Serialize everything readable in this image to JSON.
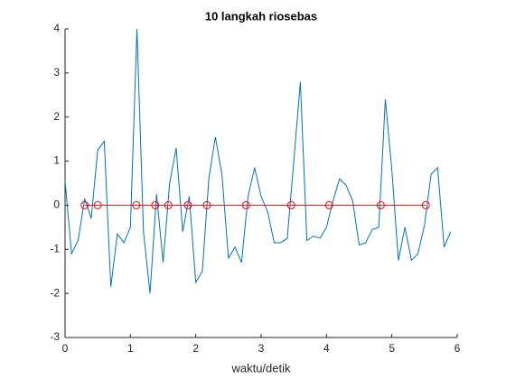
{
  "chart_data": {
    "type": "line",
    "title": "10 langkah riosebas",
    "xlabel": "waktu/detik",
    "xlim": [
      0,
      6
    ],
    "xticks": [
      0,
      1,
      2,
      3,
      4,
      5,
      6
    ],
    "ylim": [
      -3,
      4
    ],
    "yticks": [
      -3,
      -2,
      -1,
      0,
      1,
      2,
      3,
      4
    ],
    "series": [
      {
        "color": "#0072bd",
        "marker": "none",
        "x": [
          0,
          0.1,
          0.2,
          0.3,
          0.4,
          0.5,
          0.6,
          0.7,
          0.8,
          0.9,
          1,
          1.1,
          1.2,
          1.3,
          1.4,
          1.5,
          1.6,
          1.7,
          1.8,
          1.9,
          2,
          2.1,
          2.2,
          2.3,
          2.4,
          2.5,
          2.6,
          2.7,
          2.8,
          2.9,
          3,
          3.1,
          3.2,
          3.3,
          3.4,
          3.5,
          3.6,
          3.7,
          3.8,
          3.9,
          4,
          4.1,
          4.2,
          4.3,
          4.4,
          4.5,
          4.6,
          4.7,
          4.8,
          4.9,
          5,
          5.1,
          5.2,
          5.3,
          5.4,
          5.5,
          5.6,
          5.7,
          5.8,
          5.9
        ],
        "values": [
          0.55,
          -1.1,
          -0.8,
          0.15,
          -0.3,
          1.25,
          1.45,
          -1.85,
          -0.65,
          -0.85,
          -0.5,
          4.0,
          -0.6,
          -2.0,
          0.25,
          -1.3,
          0.5,
          1.3,
          -0.6,
          0.2,
          -1.75,
          -1.5,
          0.6,
          1.55,
          0.7,
          -1.2,
          -0.95,
          -1.3,
          0.2,
          0.85,
          0.2,
          -0.15,
          -0.85,
          -0.85,
          -0.75,
          1.0,
          2.8,
          -0.8,
          -0.7,
          -0.75,
          -0.5,
          0.1,
          0.6,
          0.45,
          0.1,
          -0.9,
          -0.85,
          -0.55,
          -0.5,
          2.4,
          0.8,
          -1.25,
          -0.5,
          -1.25,
          -1.1,
          -0.45,
          0.7,
          0.85,
          -0.95,
          -0.6
        ]
      },
      {
        "color": "#ff0000",
        "marker": "circle",
        "x": [
          0.3,
          0.5,
          1.09,
          1.38,
          1.58,
          1.88,
          2.17,
          2.77,
          3.46,
          4.04,
          4.83,
          5.52
        ],
        "values": [
          0,
          0,
          0,
          0,
          0,
          0,
          0,
          0,
          0,
          0,
          0,
          0
        ]
      }
    ]
  }
}
